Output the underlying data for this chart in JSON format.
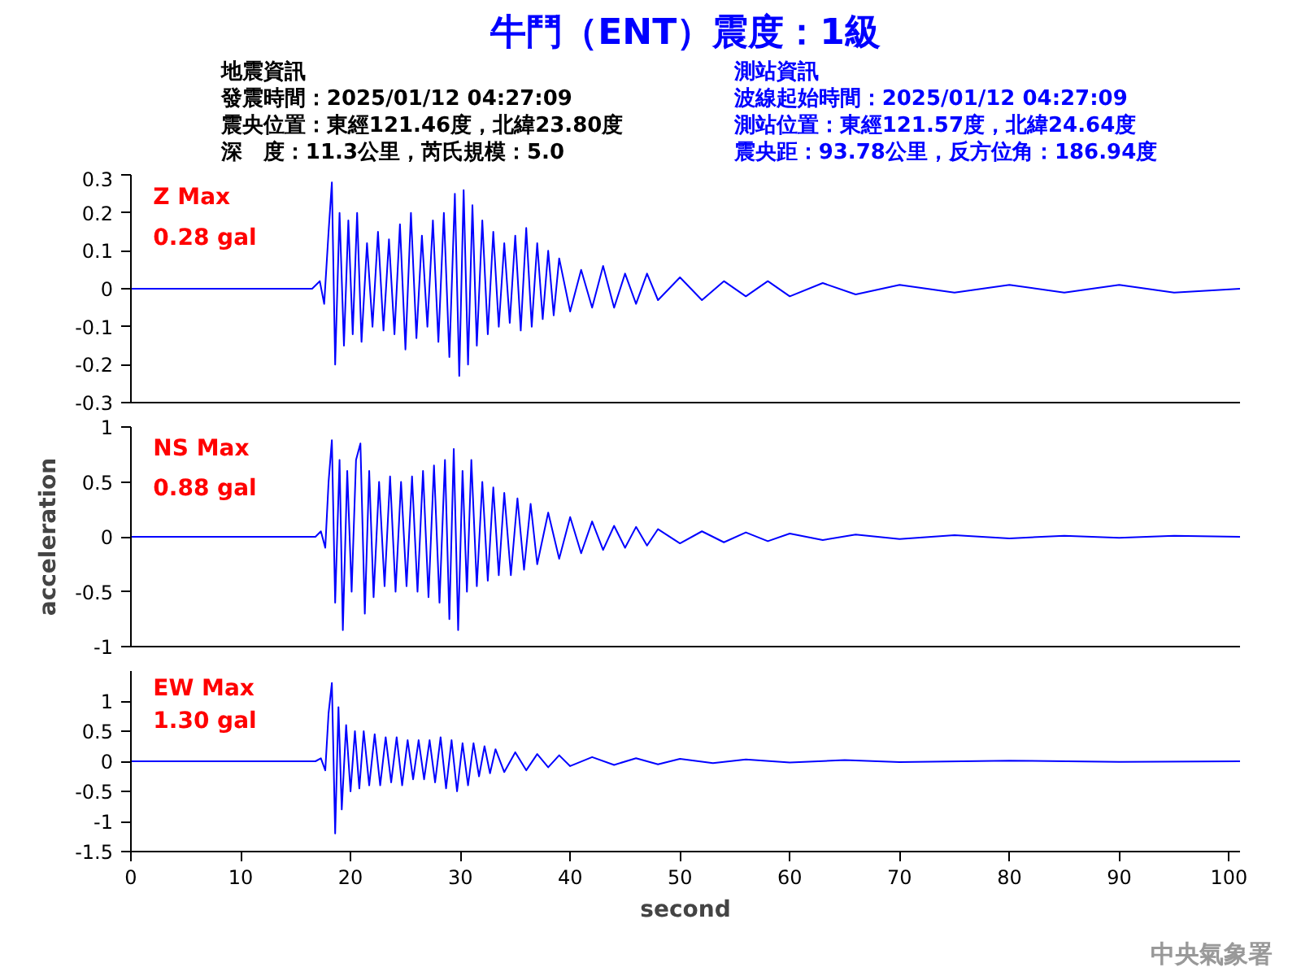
{
  "chart_data": [
    {
      "type": "line",
      "title": "牛鬥（ENT）震度：1級",
      "annotations": [
        "Z Max",
        "0.28 gal",
        "地震資訊",
        "發震時間：2025/01/12 04:27:09",
        "震央位置：東經121.46度，北緯23.80度",
        "深　度：11.3公里，芮氏規模：5.0",
        "測站資訊",
        "波線起始時間：2025/01/12 04:27:09",
        "測站位置：東經121.57度，北緯24.64度",
        "震央距：93.78公里，反方位角：186.94度"
      ],
      "xlim": [
        0,
        101
      ],
      "xticks": [
        0,
        10,
        20,
        30,
        40,
        50,
        60,
        70,
        80,
        90,
        100
      ],
      "ylim": [
        -0.3,
        0.3
      ],
      "yticks": [
        -0.3,
        -0.2,
        -0.1,
        0,
        0.1,
        0.2,
        0.3
      ],
      "tick_labels": "y",
      "color": "#0000ff",
      "x": [
        0,
        10,
        16.5,
        17.2,
        17.6,
        18.0,
        18.3,
        18.6,
        19.0,
        19.4,
        19.8,
        20.2,
        20.6,
        21.0,
        21.5,
        22.0,
        22.5,
        23.0,
        23.5,
        24.0,
        24.5,
        25.0,
        25.5,
        26.0,
        26.5,
        27.0,
        27.5,
        28.0,
        28.5,
        29.0,
        29.5,
        29.9,
        30.3,
        30.7,
        31.1,
        31.5,
        32.0,
        32.5,
        33.0,
        33.5,
        34.0,
        34.5,
        35.0,
        35.5,
        36.0,
        36.5,
        37.0,
        37.5,
        38.0,
        38.5,
        39.0,
        40,
        41,
        42,
        43,
        44,
        45,
        46,
        47,
        48,
        50,
        52,
        54,
        56,
        58,
        60,
        63,
        66,
        70,
        75,
        80,
        85,
        90,
        95,
        101
      ],
      "values": [
        0,
        0,
        0,
        0.02,
        -0.04,
        0.15,
        0.28,
        -0.2,
        0.2,
        -0.15,
        0.18,
        -0.12,
        0.2,
        -0.14,
        0.12,
        -0.1,
        0.15,
        -0.11,
        0.13,
        -0.12,
        0.17,
        -0.16,
        0.2,
        -0.13,
        0.14,
        -0.1,
        0.18,
        -0.14,
        0.2,
        -0.18,
        0.25,
        -0.23,
        0.26,
        -0.2,
        0.22,
        -0.15,
        0.18,
        -0.12,
        0.15,
        -0.1,
        0.12,
        -0.09,
        0.14,
        -0.11,
        0.16,
        -0.1,
        0.12,
        -0.08,
        0.1,
        -0.07,
        0.08,
        -0.06,
        0.05,
        -0.05,
        0.06,
        -0.05,
        0.04,
        -0.04,
        0.04,
        -0.03,
        0.03,
        -0.03,
        0.02,
        -0.02,
        0.02,
        -0.02,
        0.015,
        -0.015,
        0.01,
        -0.01,
        0.01,
        -0.01,
        0.01,
        -0.01,
        0
      ]
    },
    {
      "type": "line",
      "ylabel": "acceleration",
      "annotations": [
        "NS Max",
        "0.88 gal"
      ],
      "xlim": [
        0,
        101
      ],
      "xticks": [
        0,
        10,
        20,
        30,
        40,
        50,
        60,
        70,
        80,
        90,
        100
      ],
      "ylim": [
        -1,
        1
      ],
      "yticks": [
        -1,
        -0.5,
        0,
        0.5,
        1
      ],
      "tick_labels": "y",
      "color": "#0000ff",
      "x": [
        0,
        16.8,
        17.3,
        17.7,
        18.0,
        18.3,
        18.6,
        19.0,
        19.3,
        19.7,
        20.1,
        20.5,
        20.9,
        21.3,
        21.7,
        22.1,
        22.6,
        23.1,
        23.6,
        24.1,
        24.6,
        25.1,
        25.6,
        26.1,
        26.6,
        27.1,
        27.6,
        28.1,
        28.6,
        29.0,
        29.4,
        29.8,
        30.2,
        30.6,
        31.0,
        31.5,
        32.0,
        32.5,
        33.0,
        33.5,
        34.0,
        34.6,
        35.2,
        35.8,
        36.4,
        37,
        38,
        39,
        40,
        41,
        42,
        43,
        44,
        45,
        46,
        47,
        48,
        50,
        52,
        54,
        56,
        58,
        60,
        63,
        66,
        70,
        75,
        80,
        85,
        90,
        95,
        101
      ],
      "values": [
        0,
        0,
        0.05,
        -0.1,
        0.5,
        0.88,
        -0.6,
        0.7,
        -0.85,
        0.6,
        -0.5,
        0.7,
        0.85,
        -0.7,
        0.6,
        -0.55,
        0.5,
        -0.45,
        0.55,
        -0.5,
        0.5,
        -0.45,
        0.55,
        -0.5,
        0.6,
        -0.55,
        0.65,
        -0.6,
        0.7,
        -0.75,
        0.8,
        -0.85,
        0.6,
        -0.5,
        0.7,
        -0.45,
        0.5,
        -0.4,
        0.45,
        -0.35,
        0.4,
        -0.35,
        0.35,
        -0.3,
        0.3,
        -0.25,
        0.22,
        -0.2,
        0.18,
        -0.15,
        0.14,
        -0.12,
        0.1,
        -0.1,
        0.09,
        -0.08,
        0.07,
        -0.06,
        0.05,
        -0.05,
        0.04,
        -0.04,
        0.03,
        -0.03,
        0.02,
        -0.02,
        0.015,
        -0.015,
        0.01,
        -0.01,
        0.01,
        0
      ]
    },
    {
      "type": "line",
      "xlabel": "second",
      "annotations": [
        "EW Max",
        "1.30 gal",
        "中央氣象署"
      ],
      "xlim": [
        0,
        101
      ],
      "xticks": [
        0,
        10,
        20,
        30,
        40,
        50,
        60,
        70,
        80,
        90,
        100
      ],
      "ylim": [
        -1.5,
        1.5
      ],
      "yticks": [
        -1.5,
        -1,
        -0.5,
        0,
        0.5,
        1
      ],
      "color": "#0000ff",
      "x": [
        0,
        16.8,
        17.3,
        17.7,
        18.0,
        18.3,
        18.6,
        18.9,
        19.2,
        19.6,
        20.0,
        20.4,
        20.8,
        21.2,
        21.7,
        22.2,
        22.7,
        23.2,
        23.7,
        24.2,
        24.7,
        25.2,
        25.7,
        26.2,
        26.7,
        27.2,
        27.7,
        28.2,
        28.7,
        29.2,
        29.7,
        30.2,
        30.7,
        31.2,
        31.7,
        32.2,
        32.7,
        33.2,
        34,
        35,
        36,
        37,
        38,
        39,
        40,
        42,
        44,
        46,
        48,
        50,
        53,
        56,
        60,
        65,
        70,
        80,
        90,
        101
      ],
      "values": [
        0,
        0,
        0.05,
        -0.15,
        0.8,
        1.3,
        -1.2,
        0.9,
        -0.8,
        0.6,
        -0.5,
        0.5,
        -0.45,
        0.5,
        -0.4,
        0.45,
        -0.4,
        0.4,
        -0.35,
        0.4,
        -0.4,
        0.35,
        -0.3,
        0.35,
        -0.3,
        0.35,
        -0.35,
        0.4,
        -0.45,
        0.35,
        -0.5,
        0.3,
        -0.4,
        0.3,
        -0.25,
        0.25,
        -0.2,
        0.2,
        -0.18,
        0.15,
        -0.15,
        0.12,
        -0.1,
        0.1,
        -0.08,
        0.07,
        -0.06,
        0.05,
        -0.05,
        0.04,
        -0.03,
        0.03,
        -0.02,
        0.02,
        -0.015,
        0.01,
        -0.01,
        0
      ]
    }
  ]
}
